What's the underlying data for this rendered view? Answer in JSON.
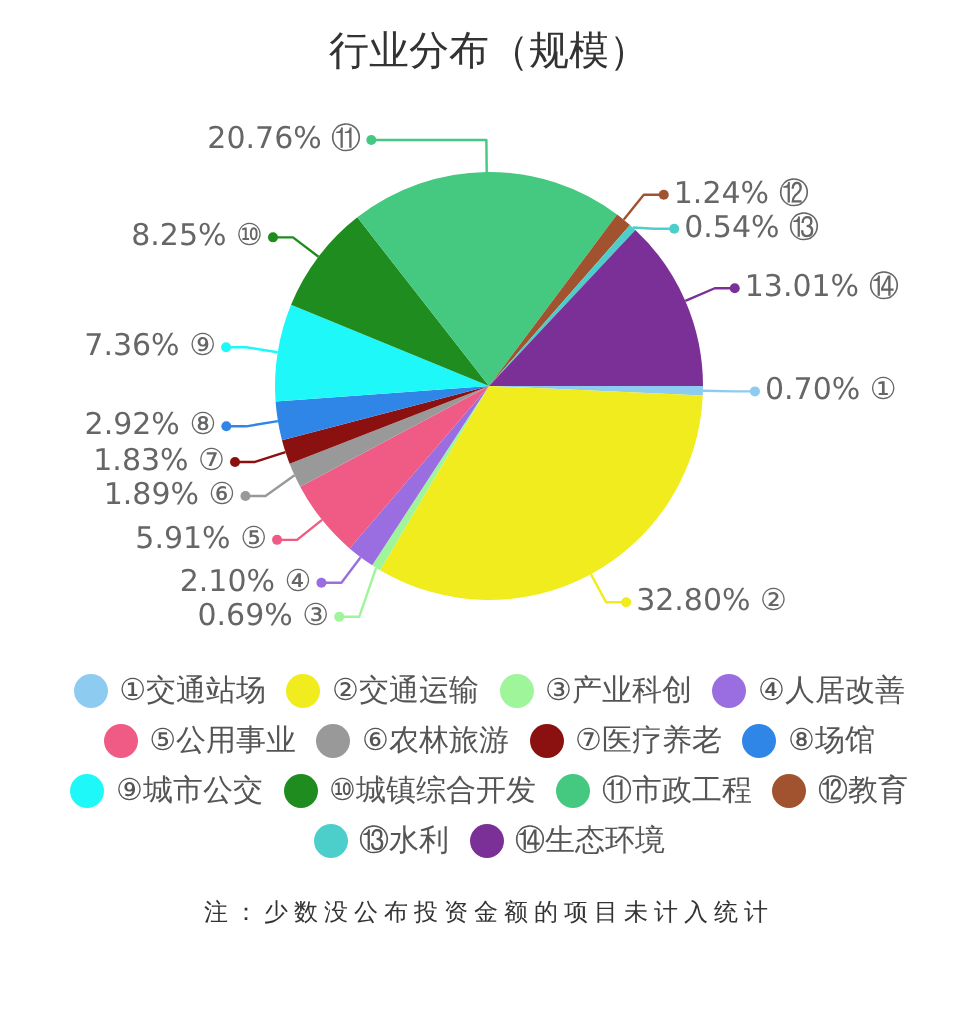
{
  "chart_data": {
    "type": "pie",
    "title": "行业分布（规模）",
    "categories": [
      "①交通站场",
      "②交通运输",
      "③产业科创",
      "④人居改善",
      "⑤公用事业",
      "⑥农林旅游",
      "⑦医疗养老",
      "⑧场馆",
      "⑨城市公交",
      "⑩城镇综合开发",
      "⑪市政工程",
      "⑫教育",
      "⑬水利",
      "⑭生态环境"
    ],
    "values": [
      0.7,
      32.8,
      0.69,
      2.1,
      5.91,
      1.89,
      1.83,
      2.92,
      7.36,
      8.25,
      20.76,
      1.24,
      0.54,
      13.01
    ],
    "value_labels": [
      "0.70% ①",
      "32.80% ②",
      "0.69% ③",
      "2.10% ④",
      "5.91% ⑤",
      "1.89% ⑥",
      "1.83% ⑦",
      "2.92% ⑧",
      "7.36% ⑨",
      "8.25% ⑩",
      "20.76% ⑪",
      "1.24% ⑫",
      "0.54% ⑬",
      "13.01% ⑭"
    ],
    "colors": [
      "#8ecbf0",
      "#f0ec1e",
      "#9ef59a",
      "#9a6ee0",
      "#ef5b84",
      "#999999",
      "#8b1010",
      "#2f86e6",
      "#1ff8f8",
      "#1e8c1e",
      "#45c880",
      "#a0532e",
      "#4ccfcb",
      "#7a3096"
    ],
    "legend": "bottom",
    "annotations": [
      "注：少数没公布投资金额的项目未计入统计"
    ]
  }
}
